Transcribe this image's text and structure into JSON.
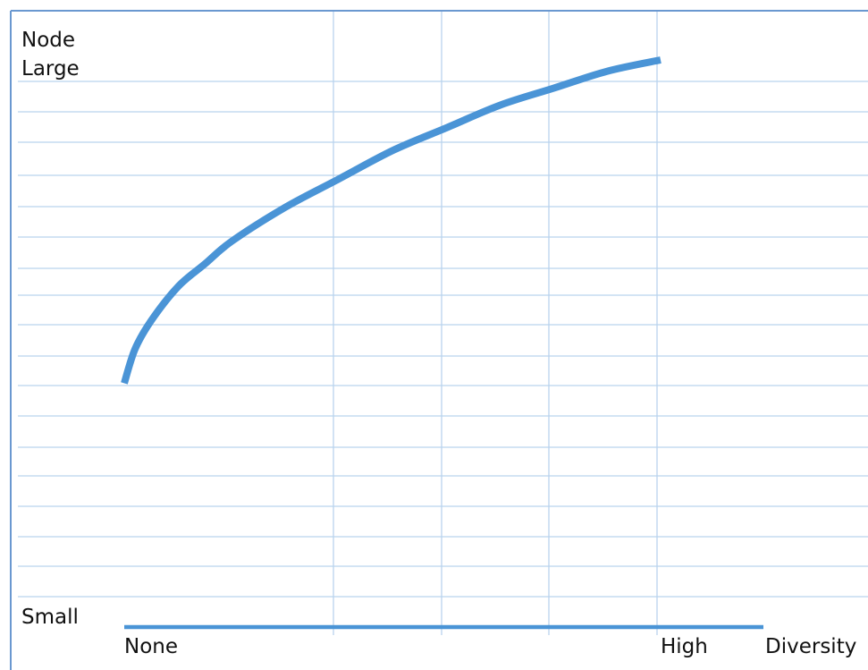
{
  "chart_data": {
    "type": "line",
    "title": "",
    "xlabel": "Diversity",
    "ylabel": "Node",
    "x_tick_labels": {
      "start": "None",
      "end": "High"
    },
    "y_tick_labels": {
      "top": "Large",
      "bottom": "Small"
    },
    "x_axis_label": "Diversity",
    "y_axis_label": "Node",
    "qualitative_axes": true,
    "xlim": [
      0,
      1
    ],
    "ylim": [
      0,
      1
    ],
    "series": [
      {
        "x": [
          0.0,
          0.02,
          0.05,
          0.1,
          0.15,
          0.2,
          0.3,
          0.4,
          0.5,
          0.6,
          0.7,
          0.8,
          0.9,
          1.0
        ],
        "y": [
          0.43,
          0.49,
          0.54,
          0.6,
          0.64,
          0.68,
          0.74,
          0.79,
          0.84,
          0.88,
          0.92,
          0.95,
          0.98,
          1.0
        ]
      }
    ],
    "grid": true,
    "colors": {
      "line": "#4a94d6",
      "axis": "#4a94d6",
      "grid": "#b9d3ee",
      "frame": "#6a98d0"
    }
  }
}
